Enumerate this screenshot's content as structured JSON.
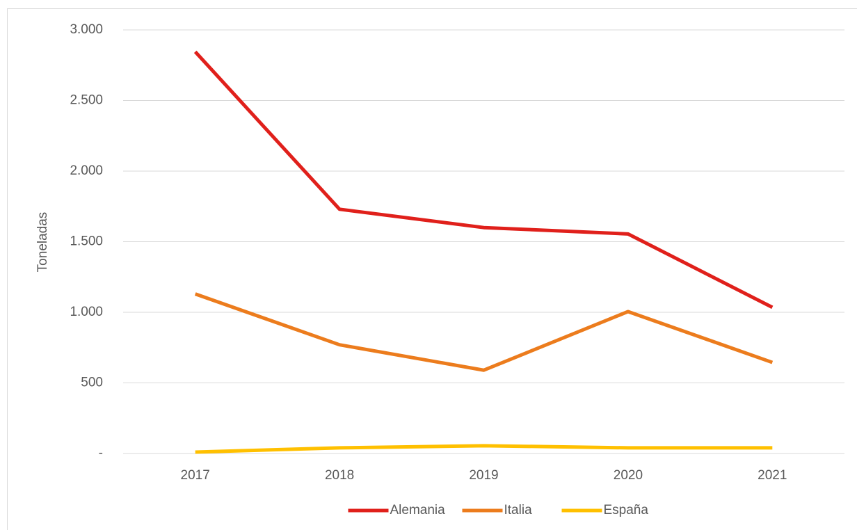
{
  "chart_data": {
    "type": "line",
    "y_label": "Toneladas",
    "categories": [
      "2017",
      "2018",
      "2019",
      "2020",
      "2021"
    ],
    "series": [
      {
        "name": "Alemania",
        "color": "#e0201b",
        "values": [
          2845,
          1730,
          1600,
          1555,
          1035
        ]
      },
      {
        "name": "Italia",
        "color": "#ec7c1d",
        "values": [
          1130,
          770,
          590,
          1005,
          645
        ]
      },
      {
        "name": "España",
        "color": "#ffc000",
        "values": [
          10,
          40,
          55,
          40,
          40
        ]
      }
    ],
    "ylim": [
      0,
      3000
    ],
    "yticks": [
      {
        "value": 0,
        "label": "-"
      },
      500,
      {
        "value": 1000,
        "label": "1.000"
      },
      {
        "value": 1500,
        "label": "1.500"
      },
      {
        "value": 2000,
        "label": "2.000"
      },
      {
        "value": 2500,
        "label": "2.500"
      },
      {
        "value": 3000,
        "label": "3.000"
      }
    ],
    "grid": true,
    "legend": "bottom"
  }
}
